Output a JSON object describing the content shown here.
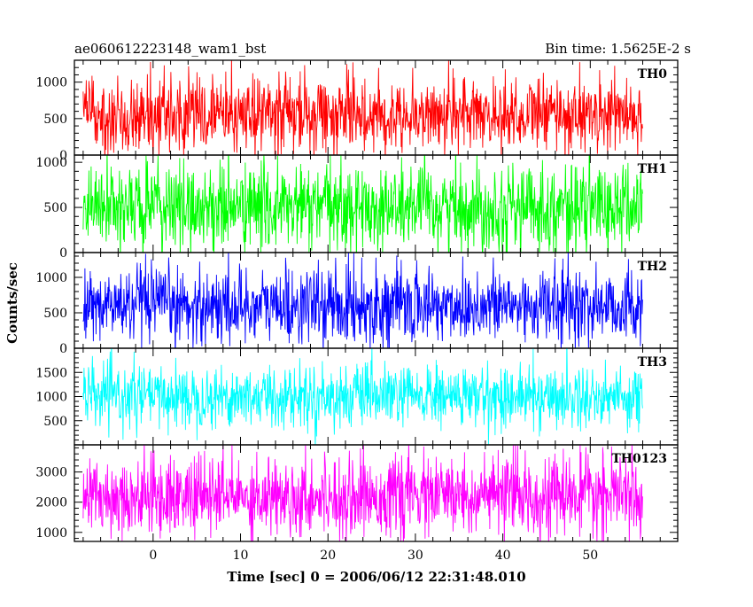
{
  "header": {
    "left_title": "ae060612223148_wam1_bst",
    "right_title": "Bin time: 1.5625E-2 s"
  },
  "chart_data": {
    "type": "line",
    "xlabel": "Time [sec] 0 = 2006/06/12 22:31:48.010",
    "ylabel": "Counts/sec",
    "xlim": [
      -9,
      60
    ],
    "x_data_range": [
      -8,
      56
    ],
    "x_ticks": [
      "0",
      "10",
      "20",
      "30",
      "40",
      "50"
    ],
    "x_tick_values": [
      0,
      10,
      20,
      30,
      40,
      50
    ],
    "panels": [
      {
        "name": "TH0",
        "color": "#ff0000",
        "ylim": [
          0,
          1300
        ],
        "y_ticks": [
          "0",
          "500",
          "1000"
        ],
        "y_tick_values": [
          0,
          500,
          1000
        ],
        "mean": 560,
        "spread": 260
      },
      {
        "name": "TH1",
        "color": "#00ff00",
        "ylim": [
          0,
          1080
        ],
        "y_ticks": [
          "0",
          "500",
          "1000"
        ],
        "y_tick_values": [
          0,
          500,
          1000
        ],
        "mean": 500,
        "spread": 240
      },
      {
        "name": "TH2",
        "color": "#0000ff",
        "ylim": [
          0,
          1350
        ],
        "y_ticks": [
          "0",
          "500",
          "1000"
        ],
        "y_tick_values": [
          0,
          500,
          1000
        ],
        "mean": 600,
        "spread": 270
      },
      {
        "name": "TH3",
        "color": "#00ffff",
        "ylim": [
          0,
          2000
        ],
        "y_ticks": [
          "500",
          "1000",
          "1500"
        ],
        "y_tick_values": [
          500,
          1000,
          1500
        ],
        "mean": 1000,
        "spread": 320
      },
      {
        "name": "TH0123",
        "color": "#ff00ff",
        "ylim": [
          700,
          3900
        ],
        "y_ticks": [
          "1000",
          "2000",
          "3000"
        ],
        "y_tick_values": [
          1000,
          2000,
          3000
        ],
        "mean": 2200,
        "spread": 650
      }
    ]
  }
}
